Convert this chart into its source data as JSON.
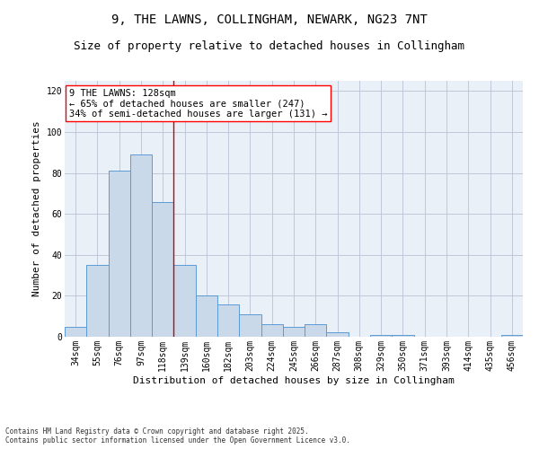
{
  "title1": "9, THE LAWNS, COLLINGHAM, NEWARK, NG23 7NT",
  "title2": "Size of property relative to detached houses in Collingham",
  "xlabel": "Distribution of detached houses by size in Collingham",
  "ylabel": "Number of detached properties",
  "categories": [
    "34sqm",
    "55sqm",
    "76sqm",
    "97sqm",
    "118sqm",
    "139sqm",
    "160sqm",
    "182sqm",
    "203sqm",
    "224sqm",
    "245sqm",
    "266sqm",
    "287sqm",
    "308sqm",
    "329sqm",
    "350sqm",
    "371sqm",
    "393sqm",
    "414sqm",
    "435sqm",
    "456sqm"
  ],
  "values": [
    5,
    35,
    81,
    89,
    66,
    35,
    20,
    16,
    11,
    6,
    5,
    6,
    2,
    0,
    1,
    1,
    0,
    0,
    0,
    0,
    1
  ],
  "bar_color": "#c9d9ea",
  "bar_edge_color": "#5b9bd5",
  "vline_x": 4.5,
  "vline_color": "#cc0000",
  "annotation_text": "9 THE LAWNS: 128sqm\n← 65% of detached houses are smaller (247)\n34% of semi-detached houses are larger (131) →",
  "ylim": [
    0,
    125
  ],
  "yticks": [
    0,
    20,
    40,
    60,
    80,
    100,
    120
  ],
  "grid_color": "#c0c8d8",
  "bg_color": "#eaf0f8",
  "footnote": "Contains HM Land Registry data © Crown copyright and database right 2025.\nContains public sector information licensed under the Open Government Licence v3.0.",
  "title1_fontsize": 10,
  "title2_fontsize": 9,
  "xlabel_fontsize": 8,
  "ylabel_fontsize": 8,
  "tick_fontsize": 7,
  "annotation_fontsize": 7.5,
  "footnote_fontsize": 5.5
}
